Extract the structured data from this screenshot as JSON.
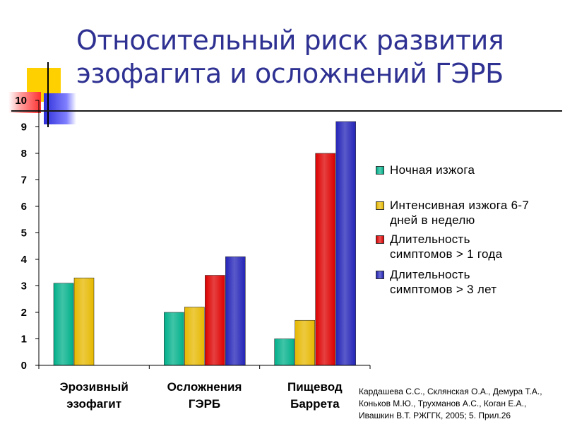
{
  "title_lines": [
    "Относительный риск развития",
    "эзофагита и осложнений ГЭРБ"
  ],
  "source_lines": [
    "Кардашева С.С., Склянская О.А., Демура Т.А.,",
    "Коньков М.Ю., Трухманов А.С., Коган Е.А.,",
    "Ивашкин В.Т.  РЖГГК, 2005; 5. Прил.26"
  ],
  "chart_data": {
    "type": "bar",
    "categories": [
      [
        "Эрозивный",
        "эзофагит"
      ],
      [
        "Осложнения",
        "ГЭРБ"
      ],
      [
        "Пищевод",
        "Баррета"
      ]
    ],
    "series": [
      {
        "name": [
          "Ночная изжога"
        ],
        "values": [
          3.1,
          2.0,
          1.0
        ],
        "color": "#00b08a"
      },
      {
        "name": [
          "Интенсивная изжога 6-7",
          "дней в неделю"
        ],
        "values": [
          3.3,
          2.2,
          1.7
        ],
        "color": "#e6b800"
      },
      {
        "name": [
          "Длительность",
          "симптомов > 1 года"
        ],
        "values": [
          null,
          3.4,
          8.0
        ],
        "color": "#dd0000"
      },
      {
        "name": [
          "Длительность",
          "симптомов > 3 лет"
        ],
        "values": [
          null,
          4.1,
          9.2
        ],
        "color": "#2323b8"
      }
    ],
    "ylim": [
      0,
      10
    ],
    "yticks": [
      "0",
      "1",
      "2",
      "3",
      "4",
      "5",
      "6",
      "7",
      "8",
      "9",
      "10"
    ],
    "grid": false,
    "legend_position": "right"
  }
}
